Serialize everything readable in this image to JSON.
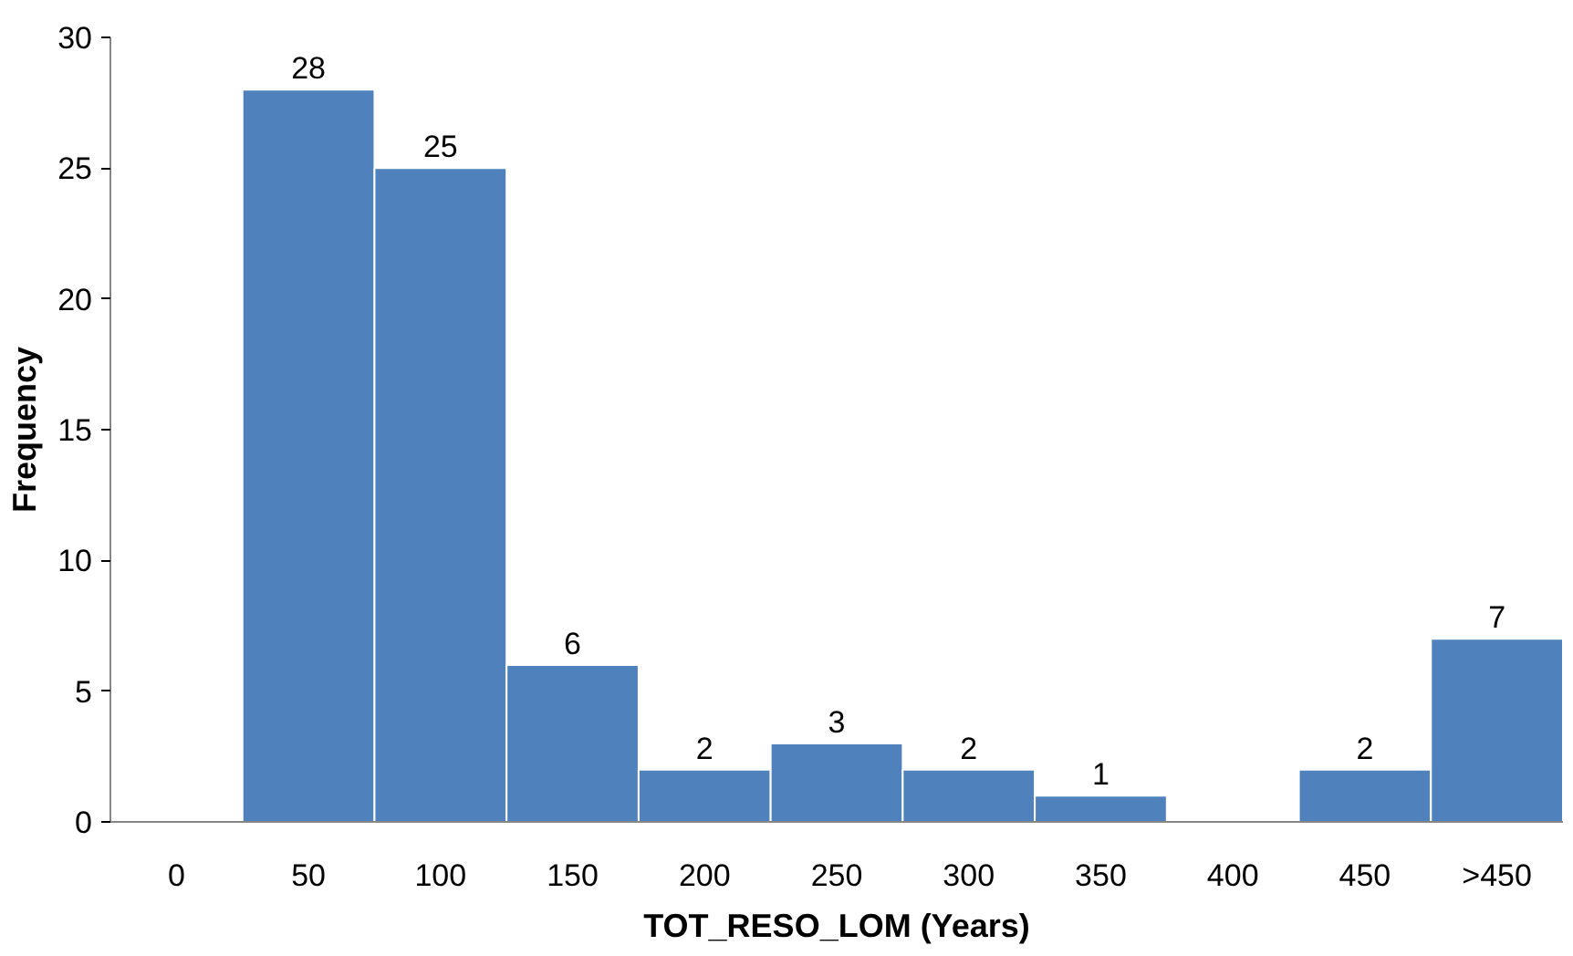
{
  "chart_data": {
    "type": "bar",
    "xlabel": "TOT_RESO_LOM (Years)",
    "ylabel": "Frequency",
    "categories": [
      "0",
      "50",
      "100",
      "150",
      "200",
      "250",
      "300",
      "350",
      "400",
      "450",
      ">450"
    ],
    "values": [
      0,
      28,
      25,
      6,
      2,
      3,
      2,
      1,
      0,
      2,
      7
    ],
    "value_labels": [
      null,
      "28",
      "25",
      "6",
      "2",
      "3",
      "2",
      "1",
      null,
      "2",
      "7"
    ],
    "color": "#4f81bd",
    "ylim": [
      0,
      30
    ],
    "yticks": [
      0,
      5,
      10,
      15,
      20,
      25,
      30
    ],
    "grid": false
  }
}
